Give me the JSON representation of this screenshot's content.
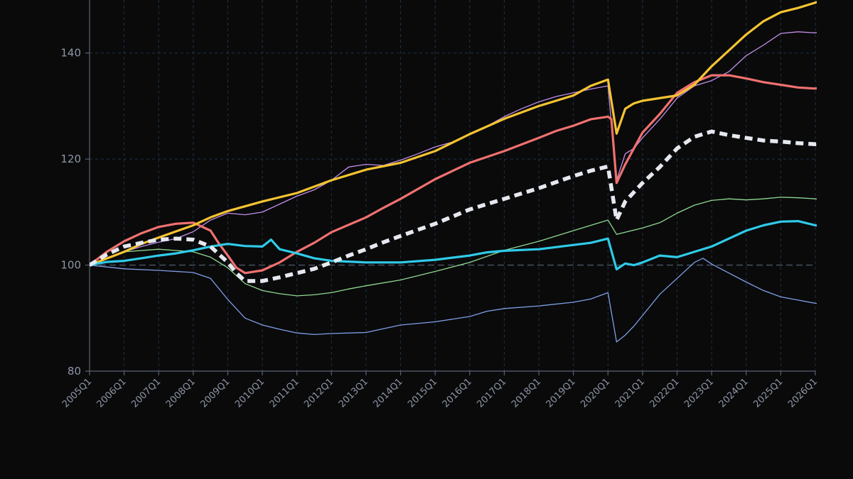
{
  "chart_data": {
    "type": "line",
    "title": "",
    "xlabel": "",
    "ylabel": "",
    "ylim": [
      80,
      150
    ],
    "y_ticks": [
      80,
      100,
      120,
      140
    ],
    "reference_line": 100,
    "grid": true,
    "legend": "none",
    "x_ticks": [
      "2005Q1",
      "2006Q1",
      "2007Q1",
      "2008Q1",
      "2009Q1",
      "2010Q1",
      "2011Q1",
      "2012Q1",
      "2013Q1",
      "2014Q1",
      "2015Q1",
      "2016Q1",
      "2017Q1",
      "2018Q1",
      "2019Q1",
      "2020Q1",
      "2021Q1",
      "2022Q1",
      "2023Q1",
      "2024Q1",
      "2025Q1",
      "2026Q1"
    ],
    "colors": {
      "background": "#0a0a0b",
      "grid": "#1f3346",
      "axis": "#5a6372",
      "reference": "#4a5666"
    },
    "series": [
      {
        "key": "s_blue",
        "color": "#7f9fe6",
        "width": 1.3,
        "dash": "",
        "points": [
          [
            2005.0,
            100
          ],
          [
            2006.0,
            99.3
          ],
          [
            2007.0,
            99.0
          ],
          [
            2008.0,
            98.6
          ],
          [
            2008.5,
            97.5
          ],
          [
            2009.0,
            93.5
          ],
          [
            2009.5,
            90.0
          ],
          [
            2010.0,
            88.7
          ],
          [
            2010.5,
            87.9
          ],
          [
            2011.0,
            87.2
          ],
          [
            2011.5,
            86.9
          ],
          [
            2012.0,
            87.1
          ],
          [
            2013.0,
            87.3
          ],
          [
            2013.5,
            88.0
          ],
          [
            2014.0,
            88.7
          ],
          [
            2015.0,
            89.3
          ],
          [
            2016.0,
            90.3
          ],
          [
            2016.5,
            91.3
          ],
          [
            2017.0,
            91.8
          ],
          [
            2018.0,
            92.3
          ],
          [
            2019.0,
            93.0
          ],
          [
            2019.5,
            93.6
          ],
          [
            2020.0,
            94.8
          ],
          [
            2020.25,
            85.5
          ],
          [
            2020.5,
            86.8
          ],
          [
            2020.75,
            88.5
          ],
          [
            2021.0,
            90.5
          ],
          [
            2021.5,
            94.5
          ],
          [
            2022.0,
            97.5
          ],
          [
            2022.5,
            100.5
          ],
          [
            2022.75,
            101.3
          ],
          [
            2023.0,
            100.2
          ],
          [
            2023.5,
            98.5
          ],
          [
            2024.0,
            96.8
          ],
          [
            2024.5,
            95.2
          ],
          [
            2025.0,
            94.0
          ],
          [
            2025.5,
            93.4
          ],
          [
            2026.0,
            92.8
          ],
          [
            2026.25,
            92.5
          ]
        ]
      },
      {
        "key": "s_green",
        "color": "#8fd98f",
        "width": 1.3,
        "dash": "",
        "points": [
          [
            2005.0,
            100
          ],
          [
            2005.5,
            101.3
          ],
          [
            2006.0,
            102.5
          ],
          [
            2007.0,
            103.0
          ],
          [
            2008.0,
            102.5
          ],
          [
            2008.5,
            101.5
          ],
          [
            2009.0,
            99.5
          ],
          [
            2009.5,
            96.5
          ],
          [
            2010.0,
            95.2
          ],
          [
            2010.5,
            94.6
          ],
          [
            2011.0,
            94.2
          ],
          [
            2011.5,
            94.4
          ],
          [
            2012.0,
            94.8
          ],
          [
            2012.5,
            95.5
          ],
          [
            2013.0,
            96.1
          ],
          [
            2014.0,
            97.2
          ],
          [
            2015.0,
            98.8
          ],
          [
            2016.0,
            100.5
          ],
          [
            2017.0,
            102.8
          ],
          [
            2018.0,
            104.5
          ],
          [
            2019.0,
            106.5
          ],
          [
            2020.0,
            108.5
          ],
          [
            2020.25,
            105.8
          ],
          [
            2020.5,
            106.2
          ],
          [
            2021.0,
            107.0
          ],
          [
            2021.5,
            108.0
          ],
          [
            2022.0,
            109.8
          ],
          [
            2022.5,
            111.3
          ],
          [
            2023.0,
            112.2
          ],
          [
            2023.5,
            112.5
          ],
          [
            2024.0,
            112.3
          ],
          [
            2024.5,
            112.5
          ],
          [
            2025.0,
            112.8
          ],
          [
            2025.5,
            112.7
          ],
          [
            2026.0,
            112.5
          ],
          [
            2026.25,
            112.3
          ]
        ]
      },
      {
        "key": "s_purple",
        "color": "#c18fe8",
        "width": 1.3,
        "dash": "",
        "points": [
          [
            2005.0,
            100
          ],
          [
            2006.0,
            102.5
          ],
          [
            2006.5,
            103.5
          ],
          [
            2007.0,
            104.3
          ],
          [
            2007.5,
            105.0
          ],
          [
            2008.0,
            106.3
          ],
          [
            2008.5,
            108.5
          ],
          [
            2009.0,
            109.8
          ],
          [
            2009.5,
            109.5
          ],
          [
            2010.0,
            110.0
          ],
          [
            2010.5,
            111.5
          ],
          [
            2011.0,
            113.0
          ],
          [
            2011.5,
            114.2
          ],
          [
            2012.0,
            116.0
          ],
          [
            2012.5,
            118.5
          ],
          [
            2013.0,
            119.0
          ],
          [
            2013.5,
            118.8
          ],
          [
            2014.0,
            119.8
          ],
          [
            2014.5,
            121.0
          ],
          [
            2015.0,
            122.3
          ],
          [
            2015.5,
            123.2
          ],
          [
            2016.0,
            124.8
          ],
          [
            2016.5,
            126.2
          ],
          [
            2017.0,
            128.0
          ],
          [
            2017.5,
            129.5
          ],
          [
            2018.0,
            130.8
          ],
          [
            2018.5,
            131.8
          ],
          [
            2019.0,
            132.5
          ],
          [
            2019.5,
            133.2
          ],
          [
            2020.0,
            133.8
          ],
          [
            2020.25,
            116.0
          ],
          [
            2020.5,
            121.0
          ],
          [
            2020.75,
            122.0
          ],
          [
            2021.0,
            124.0
          ],
          [
            2021.5,
            127.5
          ],
          [
            2022.0,
            131.5
          ],
          [
            2022.5,
            133.8
          ],
          [
            2023.0,
            134.8
          ],
          [
            2023.5,
            136.5
          ],
          [
            2024.0,
            139.5
          ],
          [
            2024.5,
            141.5
          ],
          [
            2025.0,
            143.7
          ],
          [
            2025.5,
            144.0
          ],
          [
            2026.0,
            143.8
          ],
          [
            2026.25,
            144.3
          ]
        ]
      },
      {
        "key": "s_red",
        "color": "#f0716f",
        "width": 3.2,
        "dash": "",
        "points": [
          [
            2005.0,
            100
          ],
          [
            2005.5,
            102.5
          ],
          [
            2006.0,
            104.5
          ],
          [
            2006.5,
            106.0
          ],
          [
            2007.0,
            107.2
          ],
          [
            2007.5,
            107.8
          ],
          [
            2008.0,
            108.0
          ],
          [
            2008.5,
            106.5
          ],
          [
            2008.75,
            104.0
          ],
          [
            2009.0,
            101.8
          ],
          [
            2009.25,
            99.5
          ],
          [
            2009.5,
            98.5
          ],
          [
            2010.0,
            99.0
          ],
          [
            2010.5,
            100.5
          ],
          [
            2011.0,
            102.5
          ],
          [
            2011.5,
            104.2
          ],
          [
            2012.0,
            106.2
          ],
          [
            2013.0,
            109.0
          ],
          [
            2013.5,
            110.8
          ],
          [
            2014.0,
            112.5
          ],
          [
            2015.0,
            116.2
          ],
          [
            2016.0,
            119.3
          ],
          [
            2017.0,
            121.5
          ],
          [
            2018.0,
            124.0
          ],
          [
            2018.5,
            125.3
          ],
          [
            2019.0,
            126.3
          ],
          [
            2019.5,
            127.5
          ],
          [
            2020.0,
            128.0
          ],
          [
            2020.1,
            127.5
          ],
          [
            2020.25,
            115.5
          ],
          [
            2020.5,
            119.0
          ],
          [
            2021.0,
            125.0
          ],
          [
            2021.5,
            128.5
          ],
          [
            2022.0,
            132.5
          ],
          [
            2022.5,
            134.5
          ],
          [
            2023.0,
            135.8
          ],
          [
            2023.5,
            135.8
          ],
          [
            2024.0,
            135.2
          ],
          [
            2024.5,
            134.5
          ],
          [
            2025.0,
            134.0
          ],
          [
            2025.5,
            133.5
          ],
          [
            2026.0,
            133.3
          ],
          [
            2026.25,
            133.7
          ]
        ]
      },
      {
        "key": "s_yellow",
        "color": "#f6c431",
        "width": 3.2,
        "dash": "",
        "points": [
          [
            2005.0,
            100
          ],
          [
            2006.0,
            102.5
          ],
          [
            2006.5,
            104.0
          ],
          [
            2007.0,
            105.2
          ],
          [
            2008.0,
            107.5
          ],
          [
            2008.5,
            109.0
          ],
          [
            2009.0,
            110.2
          ],
          [
            2010.0,
            112.0
          ],
          [
            2011.0,
            113.6
          ],
          [
            2012.0,
            116.0
          ],
          [
            2013.0,
            118.0
          ],
          [
            2014.0,
            119.3
          ],
          [
            2015.0,
            121.5
          ],
          [
            2016.0,
            124.7
          ],
          [
            2017.0,
            127.6
          ],
          [
            2018.0,
            130.0
          ],
          [
            2019.0,
            132.0
          ],
          [
            2019.5,
            133.8
          ],
          [
            2020.0,
            135.0
          ],
          [
            2020.25,
            124.8
          ],
          [
            2020.5,
            129.5
          ],
          [
            2020.75,
            130.5
          ],
          [
            2021.0,
            131.0
          ],
          [
            2022.0,
            132.0
          ],
          [
            2022.5,
            134.0
          ],
          [
            2023.0,
            137.5
          ],
          [
            2023.5,
            140.5
          ],
          [
            2024.0,
            143.5
          ],
          [
            2024.5,
            146.0
          ],
          [
            2025.0,
            147.7
          ],
          [
            2025.5,
            148.5
          ],
          [
            2026.0,
            149.5
          ],
          [
            2026.25,
            150.0
          ]
        ]
      },
      {
        "key": "s_cyan",
        "color": "#2fcbe8",
        "width": 3.2,
        "dash": "",
        "points": [
          [
            2005.0,
            100
          ],
          [
            2005.5,
            100.6
          ],
          [
            2006.0,
            100.8
          ],
          [
            2006.5,
            101.3
          ],
          [
            2007.0,
            101.8
          ],
          [
            2007.5,
            102.2
          ],
          [
            2008.0,
            102.8
          ],
          [
            2008.5,
            103.5
          ],
          [
            2009.0,
            104.0
          ],
          [
            2009.5,
            103.6
          ],
          [
            2010.0,
            103.5
          ],
          [
            2010.25,
            104.8
          ],
          [
            2010.5,
            103.0
          ],
          [
            2011.0,
            102.2
          ],
          [
            2011.5,
            101.3
          ],
          [
            2012.0,
            100.8
          ],
          [
            2013.0,
            100.5
          ],
          [
            2014.0,
            100.5
          ],
          [
            2015.0,
            101.0
          ],
          [
            2016.0,
            101.8
          ],
          [
            2016.5,
            102.4
          ],
          [
            2017.0,
            102.7
          ],
          [
            2018.0,
            103.0
          ],
          [
            2019.0,
            103.8
          ],
          [
            2019.5,
            104.2
          ],
          [
            2020.0,
            105.0
          ],
          [
            2020.25,
            99.2
          ],
          [
            2020.5,
            100.3
          ],
          [
            2020.75,
            100.0
          ],
          [
            2021.0,
            100.5
          ],
          [
            2021.5,
            101.8
          ],
          [
            2022.0,
            101.5
          ],
          [
            2022.5,
            102.5
          ],
          [
            2023.0,
            103.5
          ],
          [
            2023.5,
            105.0
          ],
          [
            2024.0,
            106.5
          ],
          [
            2024.5,
            107.5
          ],
          [
            2025.0,
            108.2
          ],
          [
            2025.5,
            108.3
          ],
          [
            2026.0,
            107.5
          ],
          [
            2026.25,
            107.3
          ]
        ]
      },
      {
        "key": "s_dashed",
        "color": "#e6e8f0",
        "width": 5.5,
        "dash": "11 7",
        "points": [
          [
            2005.0,
            100
          ],
          [
            2005.5,
            102.0
          ],
          [
            2006.0,
            103.5
          ],
          [
            2006.5,
            104.2
          ],
          [
            2007.0,
            104.8
          ],
          [
            2007.5,
            105.0
          ],
          [
            2008.0,
            104.8
          ],
          [
            2008.5,
            103.5
          ],
          [
            2009.0,
            100.5
          ],
          [
            2009.25,
            98.5
          ],
          [
            2009.5,
            97.0
          ],
          [
            2010.0,
            97.0
          ],
          [
            2010.5,
            97.7
          ],
          [
            2011.0,
            98.5
          ],
          [
            2011.5,
            99.3
          ],
          [
            2012.0,
            100.5
          ],
          [
            2012.5,
            101.8
          ],
          [
            2013.0,
            103.0
          ],
          [
            2013.5,
            104.3
          ],
          [
            2014.0,
            105.5
          ],
          [
            2015.0,
            107.8
          ],
          [
            2016.0,
            110.5
          ],
          [
            2017.0,
            112.5
          ],
          [
            2018.0,
            114.5
          ],
          [
            2019.0,
            116.8
          ],
          [
            2019.5,
            117.8
          ],
          [
            2020.0,
            118.6
          ],
          [
            2020.25,
            108.5
          ],
          [
            2020.5,
            112.0
          ],
          [
            2021.0,
            115.5
          ],
          [
            2021.5,
            118.5
          ],
          [
            2022.0,
            122.0
          ],
          [
            2022.5,
            124.2
          ],
          [
            2023.0,
            125.2
          ],
          [
            2023.5,
            124.5
          ],
          [
            2024.0,
            124.0
          ],
          [
            2024.5,
            123.5
          ],
          [
            2025.0,
            123.3
          ],
          [
            2025.5,
            123.0
          ],
          [
            2026.0,
            122.8
          ],
          [
            2026.25,
            122.9
          ]
        ]
      }
    ]
  }
}
